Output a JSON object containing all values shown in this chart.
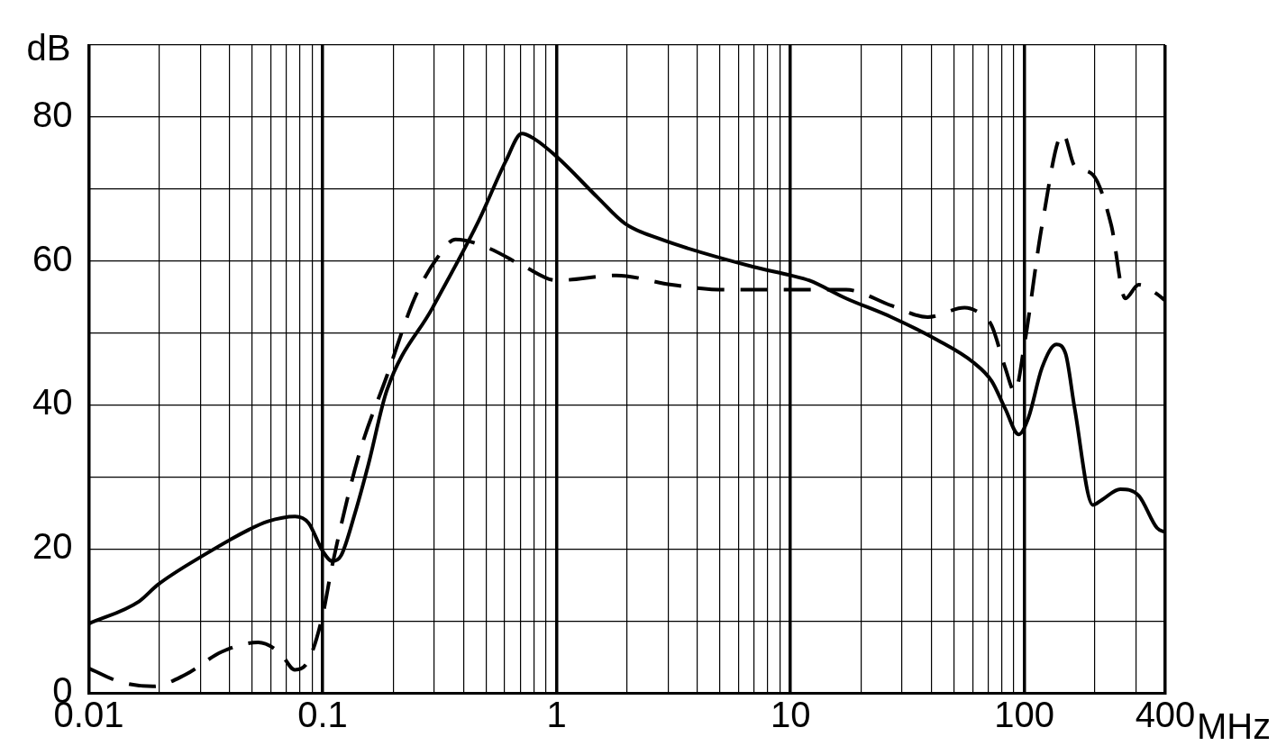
{
  "chart_data": {
    "type": "line",
    "xlabel": "MHz",
    "ylabel": "dB",
    "log": "x",
    "grid": true,
    "legend": false,
    "marker": "none",
    "xlim": [
      0.01,
      400
    ],
    "ylim": [
      0,
      90
    ],
    "xticks": [
      0.01,
      {
        "value": 0.02,
        "label": null
      },
      {
        "value": 0.03,
        "label": null
      },
      {
        "value": 0.04,
        "label": null
      },
      {
        "value": 0.05,
        "label": null
      },
      {
        "value": 0.06,
        "label": null
      },
      {
        "value": 0.07,
        "label": null
      },
      {
        "value": 0.08,
        "label": null
      },
      {
        "value": 0.09,
        "label": null
      },
      0.1,
      {
        "value": 0.2,
        "label": null
      },
      {
        "value": 0.3,
        "label": null
      },
      {
        "value": 0.4,
        "label": null
      },
      {
        "value": 0.5,
        "label": null
      },
      {
        "value": 0.6,
        "label": null
      },
      {
        "value": 0.7,
        "label": null
      },
      {
        "value": 0.8,
        "label": null
      },
      {
        "value": 0.9,
        "label": null
      },
      1,
      {
        "value": 2,
        "label": null
      },
      {
        "value": 3,
        "label": null
      },
      {
        "value": 4,
        "label": null
      },
      {
        "value": 5,
        "label": null
      },
      {
        "value": 6,
        "label": null
      },
      {
        "value": 7,
        "label": null
      },
      {
        "value": 8,
        "label": null
      },
      {
        "value": 9,
        "label": null
      },
      10,
      {
        "value": 20,
        "label": null
      },
      {
        "value": 30,
        "label": null
      },
      {
        "value": 40,
        "label": null
      },
      {
        "value": 50,
        "label": null
      },
      {
        "value": 60,
        "label": null
      },
      {
        "value": 70,
        "label": null
      },
      {
        "value": 80,
        "label": null
      },
      {
        "value": 90,
        "label": null
      },
      100,
      {
        "value": 200,
        "label": null
      },
      {
        "value": 300,
        "label": null
      },
      400
    ],
    "yticks": [
      0,
      {
        "value": 10,
        "label": null
      },
      20,
      {
        "value": 30,
        "label": null
      },
      40,
      {
        "value": 50,
        "label": null
      },
      60,
      {
        "value": 70,
        "label": null
      },
      80,
      {
        "value": 90,
        "label": null
      }
    ],
    "series": [
      {
        "color": "#000000",
        "line_style": "solid",
        "x": [
          0.01,
          0.0164,
          0.0197,
          0.0309,
          0.0486,
          0.058,
          0.0762,
          0.087,
          0.1,
          0.11,
          0.12,
          0.137,
          0.157,
          0.188,
          0.295,
          0.465,
          0.607,
          0.71,
          0.8,
          1,
          1.5,
          1.96,
          2.8,
          6.9,
          10,
          12,
          17.3,
          27,
          42.5,
          60.5,
          72.5,
          82.7,
          94.5,
          104,
          119,
          137,
          150,
          164,
          196,
          214,
          257,
          308,
          369,
          400
        ],
        "values": [
          9.6,
          12.7,
          15,
          19.1,
          22.7,
          23.8,
          24.5,
          23.6,
          19.7,
          18.3,
          19.1,
          24.8,
          31.8,
          42,
          53.5,
          65.6,
          73.9,
          77.7,
          77,
          74.5,
          68.8,
          65.2,
          63,
          59.2,
          58,
          57.3,
          54.8,
          52.2,
          49,
          45.9,
          43.3,
          39.5,
          35.9,
          38.2,
          45.2,
          48.4,
          47.1,
          39.5,
          26.1,
          26.8,
          28.3,
          27.4,
          22.9,
          22.3
        ]
      },
      {
        "color": "#000000",
        "line_style": "dashed",
        "x": [
          0.01,
          0.0137,
          0.0188,
          0.0258,
          0.037,
          0.053,
          0.066,
          0.076,
          0.087,
          0.1,
          0.11,
          0.143,
          0.188,
          0.247,
          0.31,
          0.37,
          0.51,
          0.73,
          1,
          1.8,
          3.1,
          5.3,
          10,
          17.3,
          27,
          38.6,
          55.5,
          66,
          72.5,
          82.7,
          91,
          100,
          119,
          146,
          164,
          196,
          235,
          270,
          308,
          369,
          400
        ],
        "values": [
          3.4,
          1.5,
          0.9,
          2.5,
          5.7,
          7,
          5.5,
          3.2,
          4.5,
          10.8,
          17.8,
          33.1,
          44,
          54.8,
          60.5,
          63,
          61.8,
          59.2,
          57.3,
          58,
          56.7,
          56,
          56,
          56,
          53.8,
          52.2,
          53.5,
          52.5,
          51,
          45.2,
          41.8,
          48.4,
          65,
          77.7,
          73.2,
          72,
          65,
          54.8,
          56.7,
          55.4,
          54.5
        ]
      }
    ]
  }
}
